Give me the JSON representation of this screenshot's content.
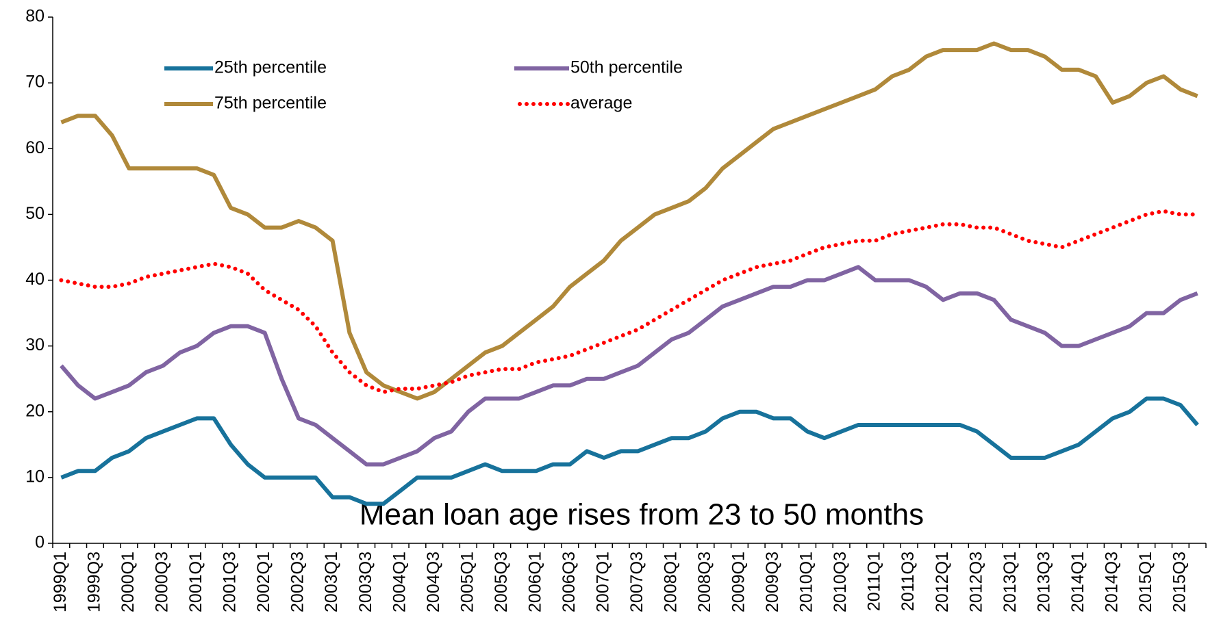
{
  "chart_data": {
    "type": "line",
    "annotation": "Mean loan age rises from 23 to 50 months",
    "categories": [
      "1999Q1",
      null,
      "1999Q3",
      null,
      "2000Q1",
      null,
      "2000Q3",
      null,
      "2001Q1",
      null,
      "2001Q3",
      null,
      "2002Q1",
      null,
      "2002Q3",
      null,
      "2003Q1",
      null,
      "2003Q3",
      null,
      "2004Q1",
      null,
      "2004Q3",
      null,
      "2005Q1",
      null,
      "2005Q3",
      null,
      "2006Q1",
      null,
      "2006Q3",
      null,
      "2007Q1",
      null,
      "2007Q3",
      null,
      "2008Q1",
      null,
      "2008Q3",
      null,
      "2009Q1",
      null,
      "2009Q3",
      null,
      "2010Q1",
      null,
      "2010Q3",
      null,
      "2011Q1",
      null,
      "2011Q3",
      null,
      "2012Q1",
      null,
      "2012Q3",
      null,
      "2013Q1",
      null,
      "2013Q3",
      null,
      "2014Q1",
      null,
      "2014Q3",
      null,
      "2015Q1",
      null,
      "2015Q3",
      null
    ],
    "series": [
      {
        "name": "25th percentile",
        "color": "#17729b",
        "style": "solid",
        "values": [
          10,
          11,
          11,
          13,
          14,
          16,
          17,
          18,
          19,
          19,
          15,
          12,
          10,
          10,
          10,
          10,
          7,
          7,
          6,
          6,
          8,
          10,
          10,
          10,
          11,
          12,
          11,
          11,
          11,
          12,
          12,
          14,
          13,
          14,
          14,
          15,
          16,
          16,
          17,
          19,
          20,
          20,
          19,
          19,
          17,
          16,
          17,
          18,
          18,
          18,
          18,
          18,
          18,
          18,
          17,
          15,
          13,
          13,
          13,
          14,
          15,
          17,
          19,
          20,
          22,
          22,
          21,
          18
        ]
      },
      {
        "name": "50th percentile",
        "color": "#8064a2",
        "style": "solid",
        "values": [
          27,
          24,
          22,
          23,
          24,
          26,
          27,
          29,
          30,
          32,
          33,
          33,
          32,
          25,
          19,
          18,
          16,
          14,
          12,
          12,
          13,
          14,
          16,
          17,
          20,
          22,
          22,
          22,
          23,
          24,
          24,
          25,
          25,
          26,
          27,
          29,
          31,
          32,
          34,
          36,
          37,
          38,
          39,
          39,
          40,
          40,
          41,
          42,
          40,
          40,
          40,
          39,
          37,
          38,
          38,
          37,
          34,
          33,
          32,
          30,
          30,
          31,
          32,
          33,
          35,
          35,
          37,
          38
        ]
      },
      {
        "name": "75th percentile",
        "color": "#b0893a",
        "style": "solid",
        "values": [
          64,
          65,
          65,
          62,
          57,
          57,
          57,
          57,
          57,
          56,
          51,
          50,
          48,
          48,
          49,
          48,
          46,
          32,
          26,
          24,
          23,
          22,
          23,
          25,
          27,
          29,
          30,
          32,
          34,
          36,
          39,
          41,
          43,
          46,
          48,
          50,
          51,
          52,
          54,
          57,
          59,
          61,
          63,
          64,
          65,
          66,
          67,
          68,
          69,
          71,
          72,
          74,
          75,
          75,
          75,
          76,
          75,
          75,
          74,
          72,
          72,
          71,
          67,
          68,
          70,
          71,
          69,
          68
        ]
      },
      {
        "name": "average",
        "color": "#ff0000",
        "style": "dotted",
        "values": [
          40,
          39.5,
          39,
          39,
          39.5,
          40.5,
          41,
          41.5,
          42,
          42.5,
          42,
          41,
          38.5,
          37,
          35.5,
          33,
          29,
          26,
          24,
          23,
          23.5,
          23.5,
          24,
          24.5,
          25.5,
          26,
          26.5,
          26.5,
          27.5,
          28,
          28.5,
          29.5,
          30.5,
          31.5,
          32.5,
          34,
          35.5,
          37,
          38.5,
          40,
          41,
          42,
          42.5,
          43,
          44,
          45,
          45.5,
          46,
          46,
          47,
          47.5,
          48,
          48.5,
          48.5,
          48,
          48,
          47,
          46,
          45.5,
          45,
          46,
          47,
          48,
          49,
          50,
          50.5,
          50,
          50
        ]
      }
    ],
    "ylim": [
      0,
      80
    ],
    "yticks": [
      0,
      10,
      20,
      30,
      40,
      50,
      60,
      70,
      80
    ],
    "grid": false
  }
}
